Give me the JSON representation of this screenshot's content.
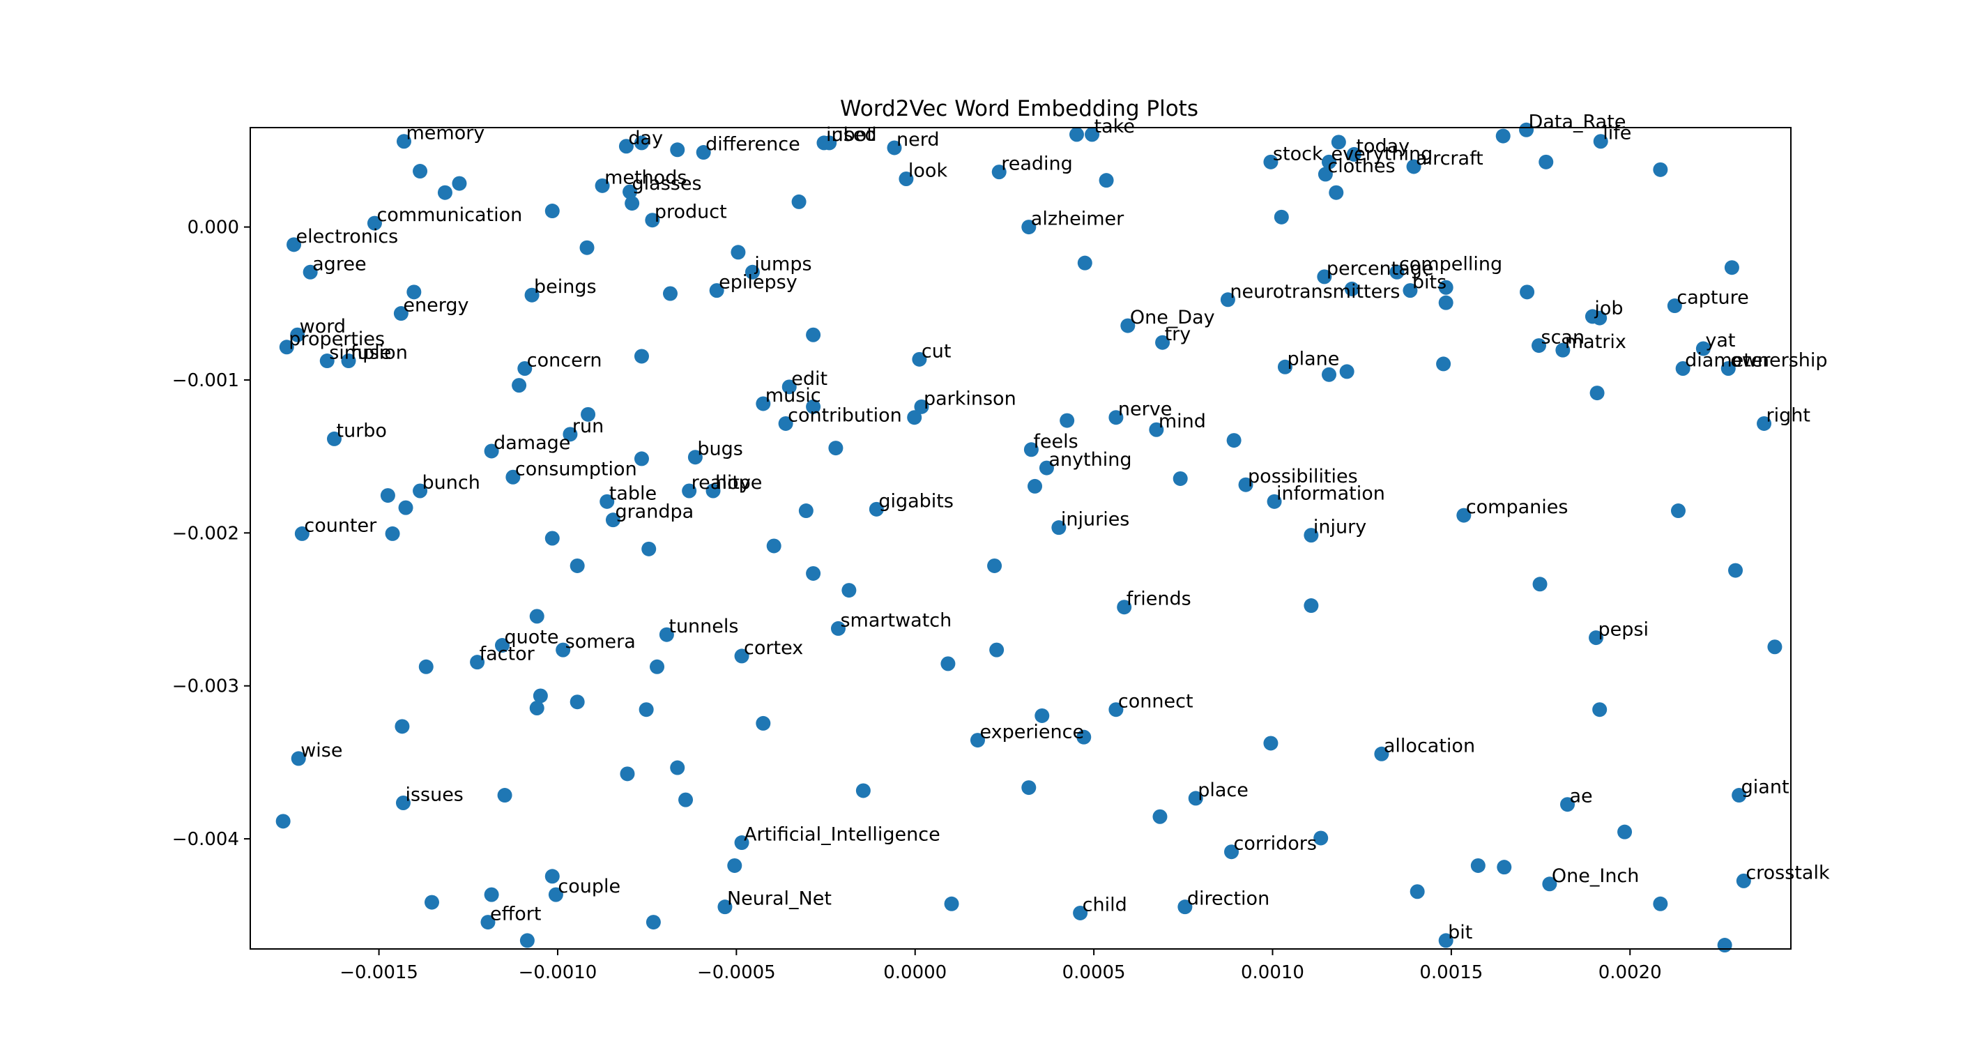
{
  "chart_data": {
    "type": "scatter",
    "title": "Word2Vec Word Embedding Plots",
    "xlabel": "",
    "ylabel": "",
    "xlim": [
      -0.00186,
      0.00245
    ],
    "ylim": [
      -0.00472,
      0.00065
    ],
    "x_ticks": [
      -0.0015,
      -0.001,
      -0.0005,
      0.0,
      0.0005,
      0.001,
      0.0015,
      0.002
    ],
    "x_tick_labels": [
      "−0.0015",
      "−0.0010",
      "−0.0005",
      "0.0000",
      "0.0005",
      "0.0010",
      "0.0015",
      "0.0020"
    ],
    "y_ticks": [
      0.0,
      -0.001,
      -0.002,
      -0.003,
      -0.004
    ],
    "y_tick_labels": [
      "0.000",
      "−0.001",
      "−0.002",
      "−0.003",
      "−0.004"
    ],
    "grid": false,
    "marker_color": "#1f77b4",
    "labeled_points": [
      {
        "label": "memory",
        "x": -0.00143,
        "y": 0.00056
      },
      {
        "label": "day",
        "x": -0.000808,
        "y": 0.000528
      },
      {
        "label": "difference",
        "x": -0.000592,
        "y": 0.000488
      },
      {
        "label": "inbot",
        "x": -0.000255,
        "y": 0.00055
      },
      {
        "label": "used",
        "x": -0.00024,
        "y": 0.00055
      },
      {
        "label": "nerd",
        "x": -5.8e-05,
        "y": 0.000518
      },
      {
        "label": "take",
        "x": 0.000495,
        "y": 0.000605
      },
      {
        "label": "Data_Rate",
        "x": 0.00171,
        "y": 0.000635
      },
      {
        "label": "life",
        "x": 0.001918,
        "y": 0.00056
      },
      {
        "label": "methods",
        "x": -0.000875,
        "y": 0.00027
      },
      {
        "label": "glasses",
        "x": -0.000798,
        "y": 0.00023
      },
      {
        "label": "look",
        "x": -2.5e-05,
        "y": 0.000315
      },
      {
        "label": "reading",
        "x": 0.000235,
        "y": 0.00036
      },
      {
        "label": "stock",
        "x": 0.000995,
        "y": 0.000425
      },
      {
        "label": "today",
        "x": 0.001228,
        "y": 0.000475
      },
      {
        "label": "everything",
        "x": 0.001158,
        "y": 0.000425
      },
      {
        "label": "clothes",
        "x": 0.001148,
        "y": 0.000345
      },
      {
        "label": "aircraft",
        "x": 0.001395,
        "y": 0.000395
      },
      {
        "label": "communication",
        "x": -0.001512,
        "y": 2.5e-05
      },
      {
        "label": "product",
        "x": -0.000735,
        "y": 4.5e-05
      },
      {
        "label": "alzheimer",
        "x": 0.000318,
        "y": 0.0
      },
      {
        "label": "electronics",
        "x": -0.001738,
        "y": -0.000115
      },
      {
        "label": "agree",
        "x": -0.001692,
        "y": -0.000295
      },
      {
        "label": "jumps",
        "x": -0.000455,
        "y": -0.000295
      },
      {
        "label": "epilepsy",
        "x": -0.000555,
        "y": -0.000415
      },
      {
        "label": "beings",
        "x": -0.001072,
        "y": -0.000445
      },
      {
        "label": "percentage",
        "x": 0.001145,
        "y": -0.000325
      },
      {
        "label": "compelling",
        "x": 0.001348,
        "y": -0.000295
      },
      {
        "label": "neurotransmitters",
        "x": 0.000875,
        "y": -0.000475
      },
      {
        "label": "bits",
        "x": 0.001385,
        "y": -0.000415
      },
      {
        "label": "capture",
        "x": 0.002125,
        "y": -0.000515
      },
      {
        "label": "job",
        "x": 0.001895,
        "y": -0.000585
      },
      {
        "label": "energy",
        "x": -0.001438,
        "y": -0.000565
      },
      {
        "label": "One_Day",
        "x": 0.000595,
        "y": -0.000645
      },
      {
        "label": "word",
        "x": -0.001728,
        "y": -0.000705
      },
      {
        "label": "properties",
        "x": -0.001758,
        "y": -0.000785
      },
      {
        "label": "try",
        "x": 0.000692,
        "y": -0.000755
      },
      {
        "label": "scan",
        "x": 0.001745,
        "y": -0.000775
      },
      {
        "label": "matrix",
        "x": 0.001812,
        "y": -0.000805
      },
      {
        "label": "yat",
        "x": 0.002205,
        "y": -0.000795
      },
      {
        "label": "simple",
        "x": -0.001645,
        "y": -0.000875
      },
      {
        "label": "fusion",
        "x": -0.001585,
        "y": -0.000875
      },
      {
        "label": "cut",
        "x": 1.2e-05,
        "y": -0.000865
      },
      {
        "label": "concern",
        "x": -0.001092,
        "y": -0.000925
      },
      {
        "label": "plane",
        "x": 0.001035,
        "y": -0.000915
      },
      {
        "label": "diameter",
        "x": 0.002148,
        "y": -0.000925
      },
      {
        "label": "ownership",
        "x": 0.002275,
        "y": -0.000925
      },
      {
        "label": "edit",
        "x": -0.000352,
        "y": -0.001045
      },
      {
        "label": "music",
        "x": -0.000425,
        "y": -0.001155
      },
      {
        "label": "parkinson",
        "x": 1.8e-05,
        "y": -0.001175
      },
      {
        "label": "contribution",
        "x": -0.000362,
        "y": -0.001285
      },
      {
        "label": "nerve",
        "x": 0.000562,
        "y": -0.001245
      },
      {
        "label": "mind",
        "x": 0.000675,
        "y": -0.001325
      },
      {
        "label": "right",
        "x": 0.002375,
        "y": -0.001285
      },
      {
        "label": "turbo",
        "x": -0.001625,
        "y": -0.001385
      },
      {
        "label": "run",
        "x": -0.000965,
        "y": -0.001355
      },
      {
        "label": "damage",
        "x": -0.001185,
        "y": -0.001465
      },
      {
        "label": "feels",
        "x": 0.000325,
        "y": -0.001455
      },
      {
        "label": "bugs",
        "x": -0.000615,
        "y": -0.001505
      },
      {
        "label": "anything",
        "x": 0.000368,
        "y": -0.001575
      },
      {
        "label": "consumption",
        "x": -0.001125,
        "y": -0.001635
      },
      {
        "label": "possibilities",
        "x": 0.000925,
        "y": -0.001685
      },
      {
        "label": "bunch",
        "x": -0.001385,
        "y": -0.001725
      },
      {
        "label": "reality",
        "x": -0.000632,
        "y": -0.001725
      },
      {
        "label": "hope",
        "x": -0.000565,
        "y": -0.001725
      },
      {
        "label": "table",
        "x": -0.000862,
        "y": -0.001795
      },
      {
        "label": "information",
        "x": 0.001005,
        "y": -0.001795
      },
      {
        "label": "gigabits",
        "x": -0.000108,
        "y": -0.001845
      },
      {
        "label": "grandpa",
        "x": -0.000845,
        "y": -0.001915
      },
      {
        "label": "companies",
        "x": 0.001535,
        "y": -0.001885
      },
      {
        "label": "injuries",
        "x": 0.000402,
        "y": -0.001965
      },
      {
        "label": "counter",
        "x": -0.001715,
        "y": -0.002005
      },
      {
        "label": "injury",
        "x": 0.001108,
        "y": -0.002015
      },
      {
        "label": "friends",
        "x": 0.000585,
        "y": -0.002485
      },
      {
        "label": "tunnels",
        "x": -0.000695,
        "y": -0.002665
      },
      {
        "label": "smartwatch",
        "x": -0.000215,
        "y": -0.002625
      },
      {
        "label": "pepsi",
        "x": 0.001905,
        "y": -0.002685
      },
      {
        "label": "quote",
        "x": -0.001155,
        "y": -0.002735
      },
      {
        "label": "somera",
        "x": -0.000985,
        "y": -0.002765
      },
      {
        "label": "cortex",
        "x": -0.000485,
        "y": -0.002805
      },
      {
        "label": "factor",
        "x": -0.001225,
        "y": -0.002845
      },
      {
        "label": "connect",
        "x": 0.000562,
        "y": -0.003155
      },
      {
        "label": "experience",
        "x": 0.000175,
        "y": -0.003355
      },
      {
        "label": "allocation",
        "x": 0.001305,
        "y": -0.003445
      },
      {
        "label": "wise",
        "x": -0.001725,
        "y": -0.003475
      },
      {
        "label": "issues",
        "x": -0.001432,
        "y": -0.003765
      },
      {
        "label": "place",
        "x": 0.000785,
        "y": -0.003735
      },
      {
        "label": "ae",
        "x": 0.001825,
        "y": -0.003775
      },
      {
        "label": "giant",
        "x": 0.002305,
        "y": -0.003715
      },
      {
        "label": "Artificial_Intelligence",
        "x": -0.000485,
        "y": -0.004025
      },
      {
        "label": "corridors",
        "x": 0.000885,
        "y": -0.004085
      },
      {
        "label": "couple",
        "x": -0.001005,
        "y": -0.004365
      },
      {
        "label": "One_Inch",
        "x": 0.001775,
        "y": -0.004295
      },
      {
        "label": "crosstalk",
        "x": 0.002318,
        "y": -0.004275
      },
      {
        "label": "Neural_Net",
        "x": -0.000532,
        "y": -0.004445
      },
      {
        "label": "child",
        "x": 0.000462,
        "y": -0.004485
      },
      {
        "label": "direction",
        "x": 0.000755,
        "y": -0.004445
      },
      {
        "label": "effort",
        "x": -0.001195,
        "y": -0.004545
      },
      {
        "label": "bit",
        "x": 0.001485,
        "y": -0.004665
      }
    ],
    "unlabeled_points": [
      {
        "x": -0.000765,
        "y": 0.00055
      },
      {
        "x": -0.000665,
        "y": 0.000505
      },
      {
        "x": -0.001385,
        "y": 0.000365
      },
      {
        "x": -0.001275,
        "y": 0.000285
      },
      {
        "x": -0.001315,
        "y": 0.000225
      },
      {
        "x": -0.000792,
        "y": 0.000155
      },
      {
        "x": -0.000325,
        "y": 0.000165
      },
      {
        "x": -0.001015,
        "y": 0.000105
      },
      {
        "x": 0.000452,
        "y": 0.000605
      },
      {
        "x": 0.000535,
        "y": 0.000305
      },
      {
        "x": 0.001645,
        "y": 0.000595
      },
      {
        "x": 0.001185,
        "y": 0.000555
      },
      {
        "x": 0.001765,
        "y": 0.000425
      },
      {
        "x": 0.002085,
        "y": 0.000375
      },
      {
        "x": 0.001178,
        "y": 0.000225
      },
      {
        "x": 0.001025,
        "y": 6.5e-05
      },
      {
        "x": -0.000918,
        "y": -0.000135
      },
      {
        "x": -0.000495,
        "y": -0.000165
      },
      {
        "x": 0.000475,
        "y": -0.000235
      },
      {
        "x": 0.002285,
        "y": -0.000265
      },
      {
        "x": -0.001402,
        "y": -0.000425
      },
      {
        "x": -0.000685,
        "y": -0.000435
      },
      {
        "x": 0.001222,
        "y": -0.000405
      },
      {
        "x": 0.001485,
        "y": -0.000395
      },
      {
        "x": 0.001712,
        "y": -0.000425
      },
      {
        "x": 0.001485,
        "y": -0.000495
      },
      {
        "x": 0.001915,
        "y": -0.000595
      },
      {
        "x": -0.000285,
        "y": -0.000705
      },
      {
        "x": -0.000765,
        "y": -0.000845
      },
      {
        "x": 0.001478,
        "y": -0.000895
      },
      {
        "x": 0.001158,
        "y": -0.000965
      },
      {
        "x": 0.001208,
        "y": -0.000945
      },
      {
        "x": -0.001108,
        "y": -0.001035
      },
      {
        "x": 0.001908,
        "y": -0.001085
      },
      {
        "x": -0.000915,
        "y": -0.001225
      },
      {
        "x": -0.000285,
        "y": -0.001175
      },
      {
        "x": -2e-06,
        "y": -0.001245
      },
      {
        "x": 0.000425,
        "y": -0.001265
      },
      {
        "x": 0.000892,
        "y": -0.001395
      },
      {
        "x": -0.000222,
        "y": -0.001445
      },
      {
        "x": -0.000765,
        "y": -0.001515
      },
      {
        "x": 0.000742,
        "y": -0.001645
      },
      {
        "x": 0.000335,
        "y": -0.001695
      },
      {
        "x": -0.001475,
        "y": -0.001755
      },
      {
        "x": -0.001425,
        "y": -0.001835
      },
      {
        "x": -0.000305,
        "y": -0.001855
      },
      {
        "x": 0.002135,
        "y": -0.001855
      },
      {
        "x": -0.001462,
        "y": -0.002005
      },
      {
        "x": -0.001015,
        "y": -0.002035
      },
      {
        "x": -0.000745,
        "y": -0.002105
      },
      {
        "x": -0.000395,
        "y": -0.002085
      },
      {
        "x": -0.000945,
        "y": -0.002215
      },
      {
        "x": 0.000222,
        "y": -0.002215
      },
      {
        "x": -0.000285,
        "y": -0.002265
      },
      {
        "x": 0.002295,
        "y": -0.002245
      },
      {
        "x": 0.001748,
        "y": -0.002335
      },
      {
        "x": -0.000185,
        "y": -0.002375
      },
      {
        "x": 0.001108,
        "y": -0.002475
      },
      {
        "x": -0.001058,
        "y": -0.002545
      },
      {
        "x": 0.002405,
        "y": -0.002745
      },
      {
        "x": 0.000228,
        "y": -0.002765
      },
      {
        "x": -0.001368,
        "y": -0.002875
      },
      {
        "x": -0.000722,
        "y": -0.002875
      },
      {
        "x": 9.2e-05,
        "y": -0.002855
      },
      {
        "x": -0.001048,
        "y": -0.003065
      },
      {
        "x": -0.000945,
        "y": -0.003105
      },
      {
        "x": -0.001058,
        "y": -0.003145
      },
      {
        "x": -0.000752,
        "y": -0.003155
      },
      {
        "x": 0.001915,
        "y": -0.003155
      },
      {
        "x": 0.000355,
        "y": -0.003195
      },
      {
        "x": -0.001435,
        "y": -0.003265
      },
      {
        "x": -0.000425,
        "y": -0.003245
      },
      {
        "x": 0.000472,
        "y": -0.003335
      },
      {
        "x": 0.000995,
        "y": -0.003375
      },
      {
        "x": -0.000665,
        "y": -0.003535
      },
      {
        "x": -0.000805,
        "y": -0.003575
      },
      {
        "x": -0.001148,
        "y": -0.003715
      },
      {
        "x": -0.000642,
        "y": -0.003745
      },
      {
        "x": -0.000145,
        "y": -0.003685
      },
      {
        "x": 0.000318,
        "y": -0.003665
      },
      {
        "x": -0.001768,
        "y": -0.003885
      },
      {
        "x": 0.000685,
        "y": -0.003855
      },
      {
        "x": 0.001985,
        "y": -0.003955
      },
      {
        "x": 0.001135,
        "y": -0.003995
      },
      {
        "x": -0.000505,
        "y": -0.004175
      },
      {
        "x": 0.001575,
        "y": -0.004175
      },
      {
        "x": 0.001648,
        "y": -0.004185
      },
      {
        "x": -0.001015,
        "y": -0.004245
      },
      {
        "x": 0.001405,
        "y": -0.004345
      },
      {
        "x": -0.001185,
        "y": -0.004365
      },
      {
        "x": -0.001352,
        "y": -0.004415
      },
      {
        "x": 0.000102,
        "y": -0.004425
      },
      {
        "x": 0.002085,
        "y": -0.004425
      },
      {
        "x": -0.000732,
        "y": -0.004545
      },
      {
        "x": -0.001085,
        "y": -0.004665
      },
      {
        "x": 0.002265,
        "y": -0.004695
      }
    ]
  }
}
